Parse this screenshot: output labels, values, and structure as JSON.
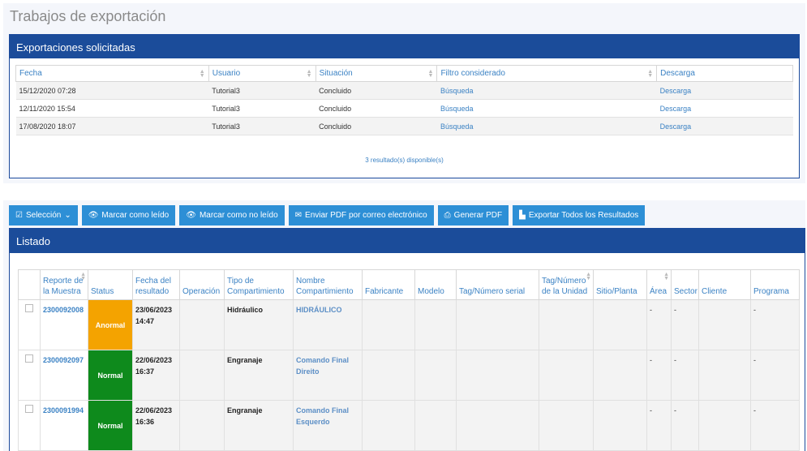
{
  "page_title": "Trabajos de exportación",
  "exports_panel": {
    "title": "Exportaciones solicitadas",
    "columns": [
      "Fecha",
      "Usuario",
      "Situación",
      "Filtro considerado",
      "Descarga"
    ],
    "rows": [
      {
        "fecha": "15/12/2020 07:28",
        "usuario": "Tutorial3",
        "situacion": "Concluido",
        "filtro": "Búsqueda",
        "descarga": "Descarga"
      },
      {
        "fecha": "12/11/2020 15:54",
        "usuario": "Tutorial3",
        "situacion": "Concluido",
        "filtro": "Búsqueda",
        "descarga": "Descarga"
      },
      {
        "fecha": "17/08/2020 18:07",
        "usuario": "Tutorial3",
        "situacion": "Concluido",
        "filtro": "Búsqueda",
        "descarga": "Descarga"
      }
    ],
    "results_count": "3 resultado(s) disponible(s)"
  },
  "toolbar": {
    "seleccion": "Selección",
    "marcar_leido": "Marcar como leído",
    "marcar_no_leido": "Marcar como no leído",
    "enviar_pdf": "Enviar PDF por correo electrónico",
    "generar_pdf": "Generar PDF",
    "exportar_todos": "Exportar Todos los Resultados"
  },
  "listado": {
    "title": "Listado",
    "columns": [
      "Reporte de la Muestra",
      "Status",
      "Fecha del resultado",
      "Operación",
      "Tipo de Compartimiento",
      "Nombre Compartimiento",
      "Fabricante",
      "Modelo",
      "Tag/Número serial",
      "Tag/Número de la Unidad",
      "Sitio/Planta",
      "Área",
      "Sector",
      "Cliente",
      "Programa"
    ],
    "rows": [
      {
        "reporte": "2300092008",
        "status": "Anormal",
        "fecha": "23/06/2023 14:47",
        "tipo": "Hidráulico",
        "nombre": "HIDRÁULICO",
        "area": "-",
        "sector": "-",
        "programa": "-"
      },
      {
        "reporte": "2300092097",
        "status": "Normal",
        "fecha": "22/06/2023 16:37",
        "tipo": "Engranaje",
        "nombre": "Comando Final Direito",
        "area": "-",
        "sector": "-",
        "programa": "-"
      },
      {
        "reporte": "2300091994",
        "status": "Normal",
        "fecha": "22/06/2023 16:36",
        "tipo": "Engranaje",
        "nombre": "Comando Final Esquerdo",
        "area": "-",
        "sector": "-",
        "programa": "-"
      }
    ]
  },
  "colors": {
    "header_blue": "#1b4c9a",
    "button_blue": "#2d8fd6",
    "link_blue": "#3b82c4",
    "status_abnormal": "#f4a300",
    "status_normal": "#0e8a1c"
  }
}
